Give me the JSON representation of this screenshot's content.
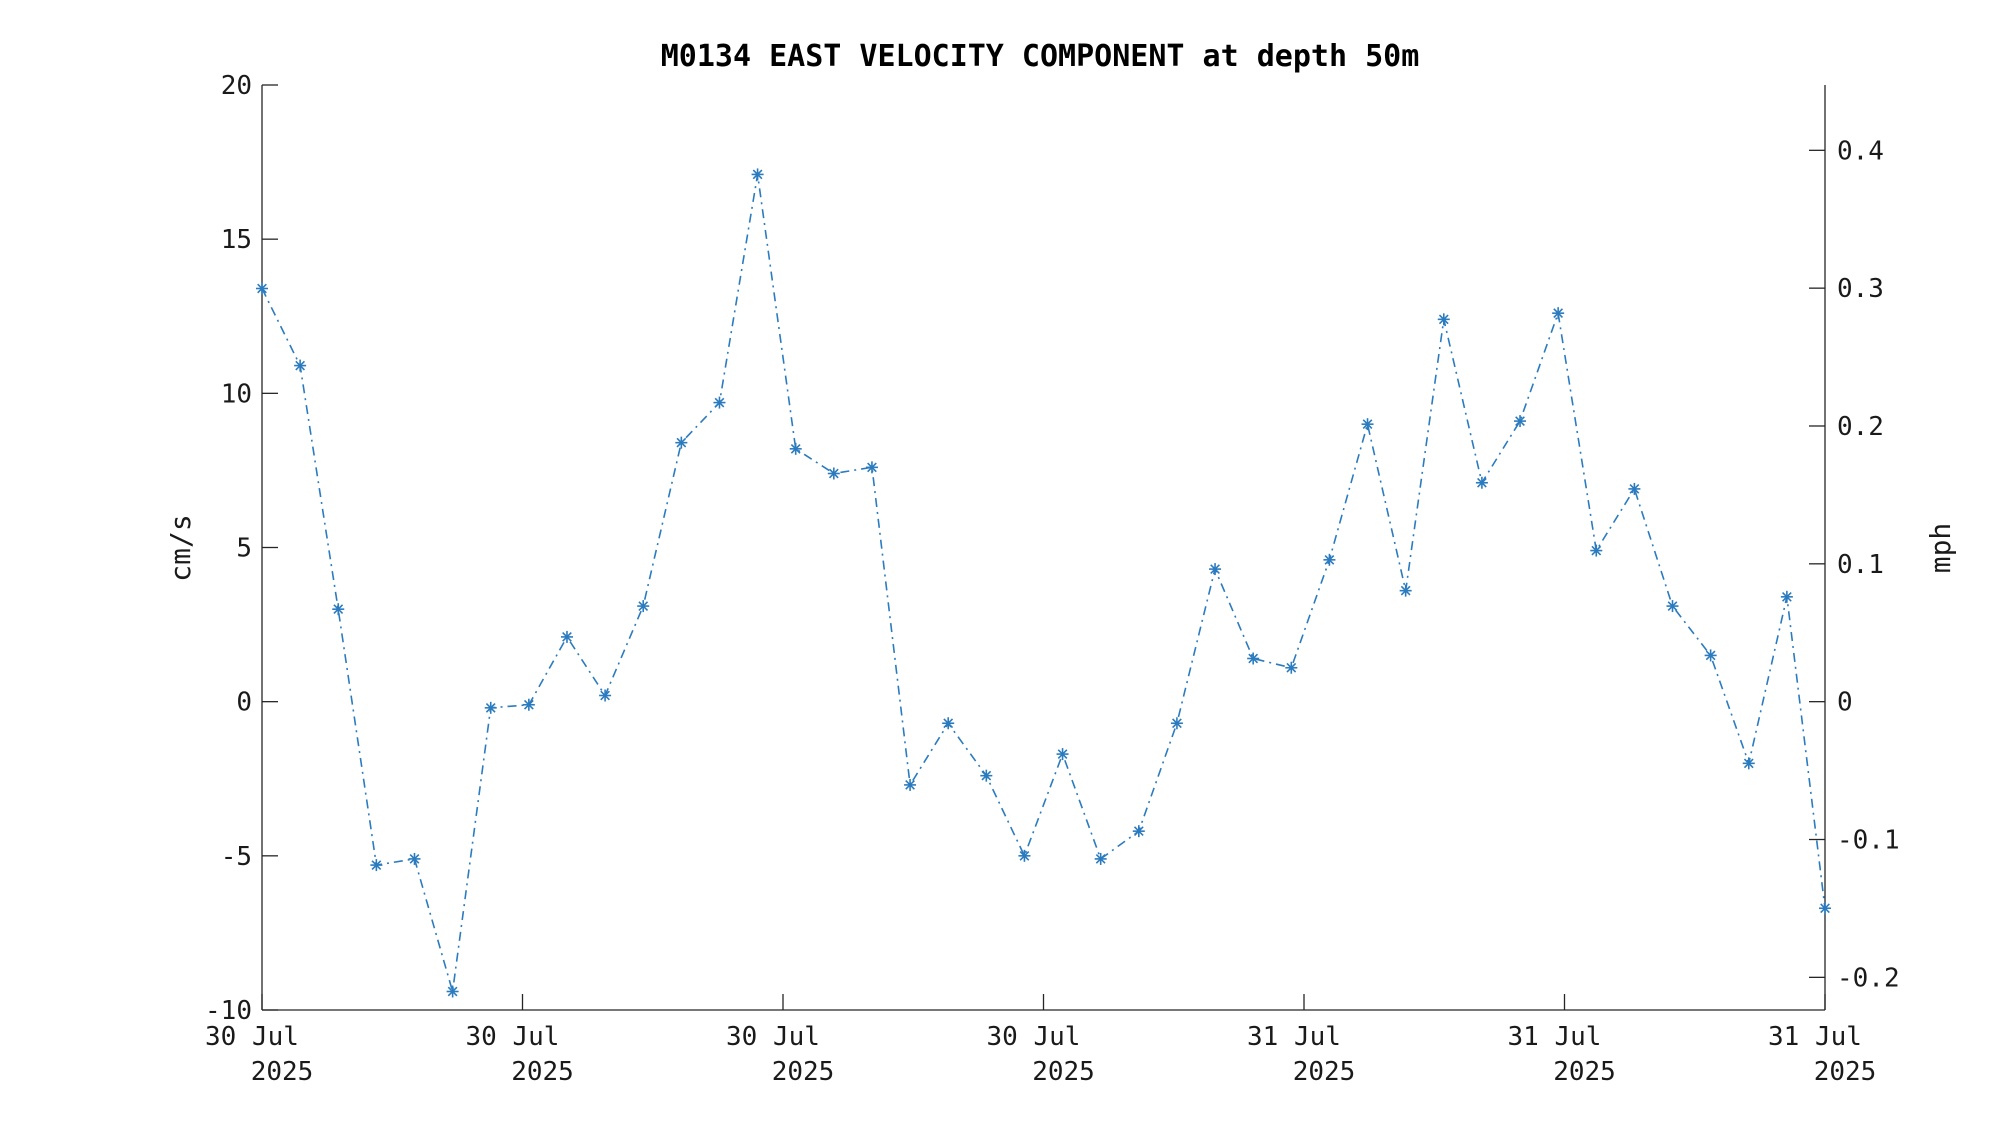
{
  "chart_data": {
    "type": "line",
    "title": "M0134 EAST VELOCITY COMPONENT at depth 50m",
    "ylabel_left": "cm/s",
    "ylabel_right": "mph",
    "ylim": [
      -10,
      20
    ],
    "yticks_left": [
      "20",
      "15",
      "10",
      "5",
      "0",
      "-5",
      "-10"
    ],
    "yticks_left_values": [
      20,
      15,
      10,
      5,
      0,
      -5,
      -10
    ],
    "yticks_right": [
      "0.4",
      "0.3",
      "0.2",
      "0.1",
      "0",
      "-0.1",
      "-0.2"
    ],
    "yticks_right_values": [
      0.4,
      0.3,
      0.2,
      0.1,
      0,
      -0.1,
      -0.2
    ],
    "xticks": [
      {
        "line1": "30 Jul",
        "line2": "2025"
      },
      {
        "line1": "30 Jul",
        "line2": "2025"
      },
      {
        "line1": "30 Jul",
        "line2": "2025"
      },
      {
        "line1": "30 Jul",
        "line2": "2025"
      },
      {
        "line1": "31 Jul",
        "line2": "2025"
      },
      {
        "line1": "31 Jul",
        "line2": "2025"
      },
      {
        "line1": "31 Jul",
        "line2": "2025"
      }
    ],
    "line_color": "#2b7bbf",
    "line_style": "dash-dot",
    "marker": "asterisk",
    "series": [
      {
        "values": [
          13.4,
          10.9,
          3.0,
          -5.3,
          -5.1,
          -9.4,
          -0.2,
          -0.1,
          2.1,
          0.2,
          3.1,
          8.4,
          9.7,
          17.1,
          8.2,
          7.4,
          7.6,
          -2.7,
          -0.7,
          -2.4,
          -5.0,
          -1.7,
          -5.1,
          -4.2,
          -0.7,
          4.3,
          1.4,
          1.1,
          4.6,
          9.0,
          3.6,
          12.4,
          7.1,
          9.1,
          12.6,
          4.9,
          6.9,
          3.1,
          1.5,
          -2.0,
          3.4,
          -6.7
        ]
      }
    ]
  }
}
